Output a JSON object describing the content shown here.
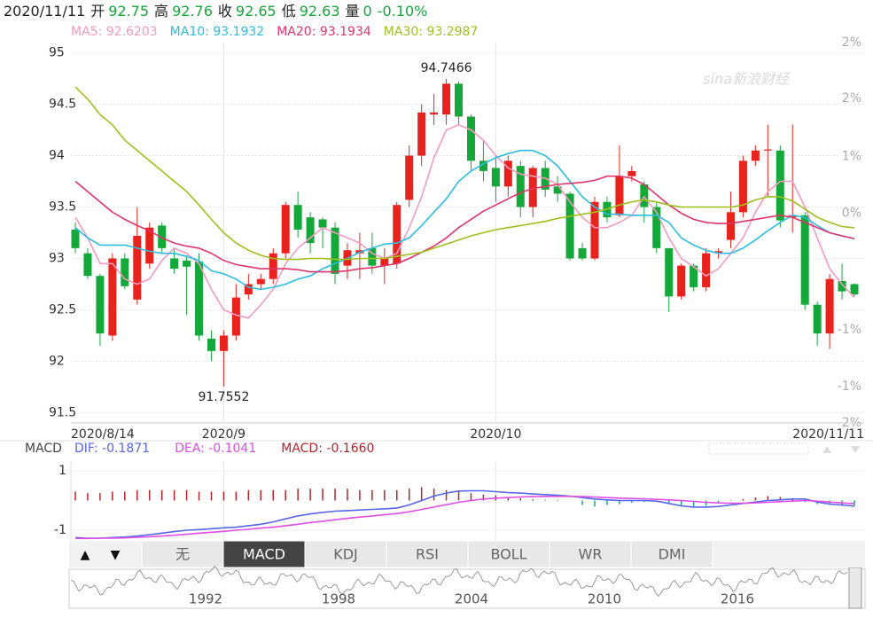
{
  "chart_data": {
    "type": "candlestick",
    "quote": {
      "date": "2020/11/11",
      "items": [
        {
          "label": "开",
          "value": 92.75
        },
        {
          "label": "高",
          "value": 92.76
        },
        {
          "label": "收",
          "value": 92.65
        },
        {
          "label": "低",
          "value": 92.63
        },
        {
          "label": "量",
          "value": 0
        }
      ],
      "change": "-0.10%"
    },
    "watermark": "sina新浪财经",
    "categories": [
      "2020/8/14",
      null,
      null,
      null,
      null,
      null,
      null,
      null,
      null,
      null,
      null,
      null,
      "2020/9",
      null,
      null,
      null,
      null,
      null,
      null,
      null,
      null,
      null,
      null,
      null,
      null,
      null,
      null,
      null,
      null,
      null,
      null,
      null,
      null,
      null,
      "2020/10",
      null,
      null,
      null,
      null,
      null,
      null,
      null,
      null,
      null,
      null,
      null,
      null,
      null,
      null,
      null,
      null,
      null,
      null,
      null,
      null,
      null,
      null,
      null,
      null,
      null,
      null,
      null,
      null,
      "2020/11/11"
    ],
    "open": [
      93.28,
      93.05,
      92.83,
      92.25,
      93.0,
      92.6,
      92.95,
      93.32,
      93.0,
      92.98,
      92.97,
      92.22,
      92.1,
      92.25,
      92.65,
      92.75,
      92.8,
      93.05,
      93.52,
      93.4,
      93.38,
      93.3,
      92.93,
      93.05,
      93.1,
      92.93,
      92.95,
      93.57,
      94.0,
      94.4,
      94.4,
      94.7,
      94.38,
      93.95,
      93.88,
      93.7,
      93.9,
      93.5,
      93.88,
      93.7,
      93.63,
      93.1,
      93.0,
      93.55,
      93.42,
      93.8,
      93.72,
      93.5,
      93.1,
      92.63,
      92.93,
      92.72,
      93.05,
      93.18,
      93.45,
      93.95,
      94.05,
      94.05,
      93.4,
      93.42,
      92.55,
      92.27,
      92.78,
      92.75
    ],
    "high": [
      93.35,
      93.1,
      92.85,
      93.05,
      93.05,
      93.5,
      93.35,
      93.35,
      93.1,
      93.03,
      93.05,
      92.3,
      92.3,
      92.75,
      92.85,
      92.85,
      93.1,
      93.55,
      93.65,
      93.45,
      93.4,
      93.35,
      93.15,
      93.25,
      93.25,
      93.1,
      93.55,
      94.1,
      94.5,
      94.6,
      94.7466,
      94.72,
      94.4,
      94.15,
      94.0,
      94.0,
      93.95,
      93.9,
      93.95,
      93.8,
      93.65,
      93.15,
      93.6,
      93.6,
      94.1,
      93.9,
      93.75,
      93.55,
      93.1,
      92.95,
      92.95,
      93.1,
      93.1,
      93.65,
      94.0,
      94.1,
      94.3,
      94.1,
      94.3,
      93.45,
      92.58,
      92.85,
      92.95,
      92.76
    ],
    "low": [
      93.05,
      92.8,
      92.15,
      92.2,
      92.7,
      92.55,
      92.9,
      93.05,
      92.85,
      92.45,
      92.2,
      92.0,
      91.7552,
      92.2,
      92.6,
      92.7,
      92.75,
      93.0,
      93.2,
      93.05,
      93.1,
      92.75,
      92.8,
      92.8,
      92.85,
      92.75,
      92.9,
      93.5,
      93.9,
      94.3,
      94.3,
      94.3,
      93.85,
      93.75,
      93.55,
      93.6,
      93.4,
      93.4,
      93.6,
      93.55,
      92.98,
      92.98,
      92.98,
      93.35,
      93.4,
      93.75,
      93.35,
      93.05,
      92.48,
      92.6,
      92.68,
      92.68,
      93.0,
      93.1,
      93.4,
      93.9,
      93.6,
      93.3,
      93.25,
      92.5,
      92.15,
      92.12,
      92.6,
      92.63
    ],
    "close": [
      93.1,
      92.83,
      92.27,
      93.0,
      92.73,
      93.22,
      93.3,
      93.1,
      92.9,
      92.92,
      92.25,
      92.1,
      92.25,
      92.62,
      92.75,
      92.8,
      93.05,
      93.52,
      93.28,
      93.15,
      93.3,
      92.85,
      93.08,
      93.08,
      92.93,
      93.0,
      93.52,
      94.0,
      94.42,
      94.42,
      94.7,
      94.38,
      93.95,
      93.85,
      93.7,
      93.95,
      93.5,
      93.88,
      93.67,
      93.63,
      93.0,
      93.0,
      93.55,
      93.4,
      93.8,
      93.85,
      93.5,
      93.1,
      92.63,
      92.93,
      92.72,
      93.05,
      93.07,
      93.45,
      93.95,
      94.05,
      94.06,
      93.37,
      93.42,
      92.55,
      92.27,
      92.8,
      92.68,
      92.65
    ],
    "up_color": "#e8221c",
    "down_color": "#14a73a",
    "series": [
      {
        "name": "MA5",
        "color": "#f49ac0",
        "values": [
          93.4,
          93.2,
          92.95,
          92.95,
          92.8,
          92.75,
          92.8,
          92.98,
          93.1,
          93.05,
          92.95,
          92.7,
          92.5,
          92.45,
          92.42,
          92.55,
          92.7,
          92.95,
          93.1,
          93.2,
          93.3,
          93.25,
          93.2,
          93.15,
          93.05,
          93.0,
          93.05,
          93.3,
          93.6,
          93.98,
          94.25,
          94.3,
          94.25,
          94.15,
          94.0,
          93.88,
          93.82,
          93.8,
          93.78,
          93.72,
          93.55,
          93.4,
          93.3,
          93.3,
          93.35,
          93.42,
          93.6,
          93.45,
          93.2,
          93.0,
          92.92,
          92.83,
          92.9,
          93.05,
          93.2,
          93.45,
          93.65,
          93.75,
          93.75,
          93.5,
          93.2,
          92.9,
          92.75,
          92.6203
        ]
      },
      {
        "name": "MA10",
        "color": "#2bbde2",
        "values": [
          93.3,
          93.2,
          93.13,
          93.13,
          93.13,
          93.1,
          93.07,
          93.05,
          93.05,
          93.02,
          92.98,
          92.88,
          92.85,
          92.8,
          92.72,
          92.7,
          92.72,
          92.75,
          92.8,
          92.83,
          92.9,
          92.95,
          93.0,
          93.06,
          93.1,
          93.14,
          93.15,
          93.2,
          93.32,
          93.45,
          93.58,
          93.75,
          93.85,
          93.92,
          93.98,
          94.02,
          94.05,
          94.05,
          94.0,
          93.9,
          93.75,
          93.6,
          93.5,
          93.43,
          93.43,
          93.42,
          93.42,
          93.42,
          93.35,
          93.2,
          93.13,
          93.08,
          93.05,
          93.05,
          93.1,
          93.18,
          93.27,
          93.35,
          93.42,
          93.4,
          93.32,
          93.25,
          93.22,
          93.1932
        ]
      },
      {
        "name": "MA20",
        "color": "#e0356b",
        "values": [
          93.75,
          93.65,
          93.55,
          93.45,
          93.38,
          93.32,
          93.27,
          93.2,
          93.15,
          93.12,
          93.1,
          93.05,
          92.98,
          92.94,
          92.92,
          92.9,
          92.9,
          92.9,
          92.89,
          92.87,
          92.87,
          92.87,
          92.88,
          92.9,
          92.91,
          92.93,
          92.95,
          93.0,
          93.06,
          93.12,
          93.2,
          93.3,
          93.38,
          93.46,
          93.52,
          93.58,
          93.64,
          93.68,
          93.7,
          93.72,
          93.73,
          93.74,
          93.76,
          93.8,
          93.8,
          93.78,
          93.72,
          93.62,
          93.52,
          93.44,
          93.38,
          93.35,
          93.34,
          93.34,
          93.36,
          93.38,
          93.4,
          93.42,
          93.4,
          93.35,
          93.3,
          93.25,
          93.22,
          93.1934
        ]
      },
      {
        "name": "MA30",
        "color": "#9dc11b",
        "values": [
          94.67,
          94.55,
          94.4,
          94.3,
          94.15,
          94.05,
          93.95,
          93.85,
          93.75,
          93.65,
          93.52,
          93.38,
          93.25,
          93.15,
          93.08,
          93.03,
          93.0,
          92.99,
          92.99,
          93.0,
          93.0,
          92.99,
          92.99,
          93.0,
          93.0,
          93.0,
          93.02,
          93.04,
          93.06,
          93.1,
          93.14,
          93.18,
          93.22,
          93.25,
          93.28,
          93.3,
          93.32,
          93.34,
          93.36,
          93.39,
          93.41,
          93.43,
          93.45,
          93.48,
          93.52,
          93.55,
          93.57,
          93.55,
          93.52,
          93.5,
          93.5,
          93.5,
          93.5,
          93.5,
          93.52,
          93.57,
          93.6,
          93.6,
          93.56,
          93.48,
          93.4,
          93.35,
          93.31,
          93.2987
        ]
      }
    ],
    "ylim": [
      91.4,
      95.1
    ],
    "yticks": [
      95,
      94.5,
      94,
      93.5,
      93,
      92.5,
      92,
      91.5
    ],
    "y2lim": [
      -2.05,
      2.45
    ],
    "y2ticks": [
      {
        "value": 2.45,
        "label": "2%"
      },
      {
        "value": 1.79,
        "label": "2%"
      },
      {
        "value": 1.1,
        "label": "1%"
      },
      {
        "value": 0.43,
        "label": "0%"
      },
      {
        "value": -0.95,
        "label": "-1%"
      },
      {
        "value": -1.62,
        "label": "-1%"
      },
      {
        "value": -2.05,
        "label": "-2%"
      }
    ],
    "annotations": [
      {
        "index": 30,
        "field": "high"
      },
      {
        "index": 12,
        "field": "low"
      }
    ],
    "macd": {
      "title": "MACD",
      "ylim": [
        -1.36,
        1.33
      ],
      "yticks": [
        1,
        -1
      ],
      "series": [
        {
          "name": "DIF",
          "color": "#5566e6",
          "values": [
            -1.25,
            -1.27,
            -1.27,
            -1.25,
            -1.23,
            -1.2,
            -1.15,
            -1.1,
            -1.05,
            -1.0,
            -0.98,
            -0.95,
            -0.92,
            -0.9,
            -0.85,
            -0.8,
            -0.72,
            -0.62,
            -0.52,
            -0.45,
            -0.4,
            -0.36,
            -0.34,
            -0.32,
            -0.3,
            -0.28,
            -0.25,
            -0.15,
            0.0,
            0.15,
            0.25,
            0.32,
            0.33,
            0.33,
            0.3,
            0.27,
            0.25,
            0.22,
            0.2,
            0.18,
            0.15,
            0.1,
            0.05,
            0.02,
            0.0,
            0.0,
            0.0,
            -0.02,
            -0.1,
            -0.18,
            -0.22,
            -0.22,
            -0.2,
            -0.15,
            -0.1,
            -0.05,
            0.0,
            0.02,
            0.05,
            0.05,
            -0.05,
            -0.12,
            -0.15,
            -0.1871
          ]
        },
        {
          "name": "DEA",
          "color": "#e04ee6",
          "values": [
            -1.28,
            -1.28,
            -1.27,
            -1.27,
            -1.26,
            -1.24,
            -1.22,
            -1.2,
            -1.17,
            -1.14,
            -1.1,
            -1.07,
            -1.04,
            -1.0,
            -0.97,
            -0.93,
            -0.9,
            -0.85,
            -0.8,
            -0.74,
            -0.7,
            -0.65,
            -0.6,
            -0.56,
            -0.52,
            -0.48,
            -0.44,
            -0.38,
            -0.3,
            -0.22,
            -0.14,
            -0.06,
            0.0,
            0.05,
            0.08,
            0.1,
            0.12,
            0.13,
            0.14,
            0.14,
            0.14,
            0.13,
            0.12,
            0.1,
            0.08,
            0.07,
            0.06,
            0.04,
            0.02,
            0.0,
            -0.03,
            -0.06,
            -0.08,
            -0.09,
            -0.09,
            -0.08,
            -0.06,
            -0.04,
            -0.02,
            0.0,
            -0.02,
            -0.05,
            -0.08,
            -0.1041
          ]
        },
        {
          "name": "MACD",
          "color": "#b2262a",
          "values": [
            0.3,
            0.25,
            0.25,
            0.3,
            0.3,
            0.35,
            0.35,
            0.35,
            0.35,
            0.35,
            0.3,
            0.3,
            0.3,
            0.3,
            0.35,
            0.35,
            0.35,
            0.35,
            0.4,
            0.4,
            0.4,
            0.4,
            0.4,
            0.35,
            0.35,
            0.35,
            0.35,
            0.4,
            0.45,
            0.4,
            0.35,
            0.3,
            0.25,
            0.2,
            0.18,
            0.12,
            0.08,
            0.04,
            0.02,
            0.02,
            0.0,
            -0.15,
            -0.2,
            -0.15,
            -0.12,
            -0.08,
            -0.05,
            -0.05,
            -0.1,
            -0.2,
            -0.2,
            -0.18,
            -0.1,
            0.02,
            0.05,
            0.1,
            0.15,
            0.12,
            0.05,
            -0.05,
            -0.12,
            -0.15,
            -0.18,
            -0.166
          ],
          "value_labels": [
            null,
            null,
            null,
            null,
            null,
            null,
            null,
            null,
            null,
            null,
            null,
            null,
            null,
            null,
            null,
            null,
            null,
            null,
            null,
            null,
            null,
            null,
            null,
            null,
            null,
            null,
            null,
            null,
            null,
            null,
            null,
            null,
            null,
            null,
            null,
            null,
            null,
            null,
            null,
            null,
            null,
            null,
            null,
            null,
            null,
            null,
            null,
            null,
            null,
            null,
            null,
            null,
            null,
            null,
            null,
            null,
            null,
            null,
            null,
            null,
            null,
            null,
            null,
            "-0.1660"
          ]
        }
      ],
      "up_color": "#b2262a",
      "down_color": "#14a0a0"
    },
    "indicators": [
      "无",
      "MACD",
      "KDJ",
      "RSI",
      "BOLL",
      "WR",
      "DMI"
    ],
    "active_indicator": "MACD",
    "navigator_years": [
      "1992",
      "1998",
      "2004",
      "2010",
      "2016"
    ]
  }
}
